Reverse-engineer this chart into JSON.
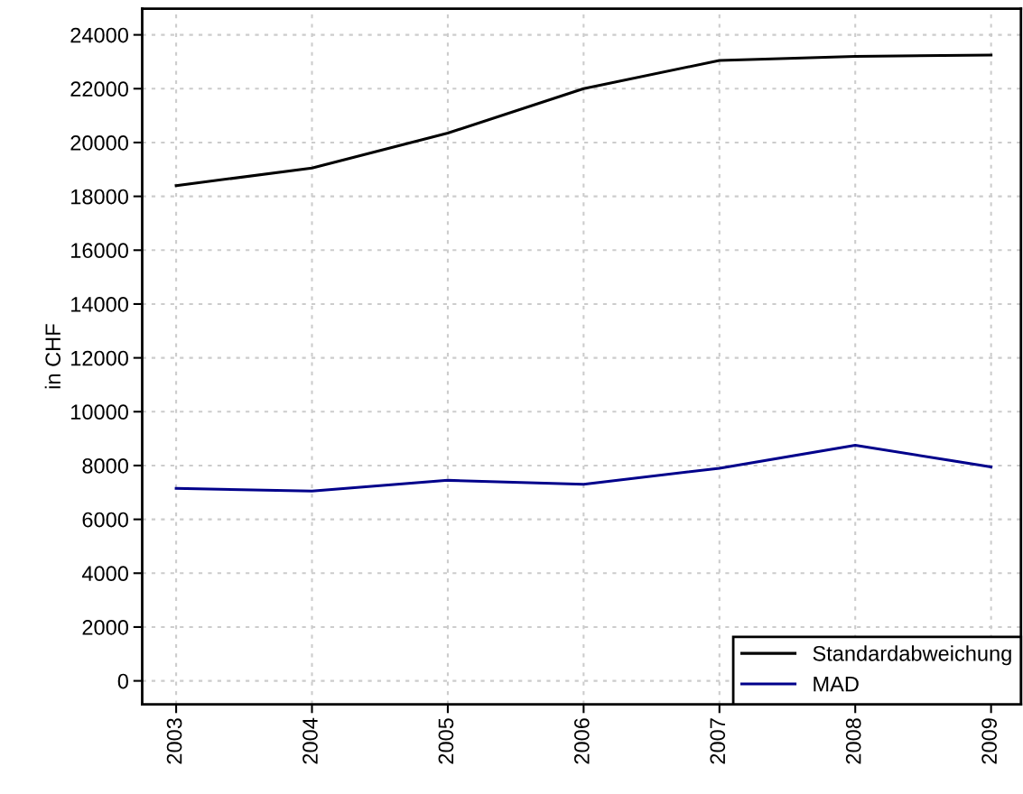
{
  "chart_data": {
    "type": "line",
    "ylabel": "in CHF",
    "x": [
      2003,
      2004,
      2005,
      2006,
      2007,
      2008,
      2009
    ],
    "series": [
      {
        "name": "Standardabweichung",
        "color": "#000000",
        "values": [
          18400,
          19050,
          20350,
          22000,
          23050,
          23200,
          23250
        ]
      },
      {
        "name": "MAD",
        "color": "#00008b",
        "values": [
          7150,
          7050,
          7450,
          7300,
          7900,
          8750,
          7950
        ]
      }
    ],
    "xlim": [
      2002.75,
      2009.22
    ],
    "ylim": [
      -870,
      24970
    ],
    "xticks": [
      2003,
      2004,
      2005,
      2006,
      2007,
      2008,
      2009
    ],
    "yticks": [
      0,
      2000,
      4000,
      6000,
      8000,
      10000,
      12000,
      14000,
      16000,
      18000,
      20000,
      22000,
      24000
    ],
    "grid": true,
    "legend": "bottom right",
    "line_style": "solid",
    "marker": "none"
  }
}
